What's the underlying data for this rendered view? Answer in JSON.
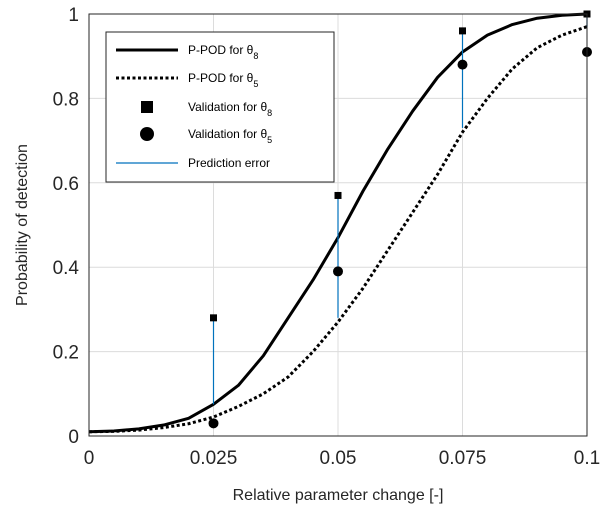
{
  "chart_data": {
    "type": "line",
    "xlabel": "Relative parameter change [-]",
    "ylabel": "Probability of detection",
    "xlim": [
      0,
      0.1
    ],
    "ylim": [
      0,
      1
    ],
    "x_ticks": [
      "0",
      "0.025",
      "0.05",
      "0.075",
      "0.1"
    ],
    "y_ticks": [
      "0",
      "0.2",
      "0.4",
      "0.6",
      "0.8",
      "1"
    ],
    "grid": true,
    "legend_position": "top-left",
    "colors": {
      "curve": "#000000",
      "error": "#0072BD",
      "grid": "#dcdcdc",
      "axis": "#262626"
    },
    "series": [
      {
        "name": "P-POD for θ8",
        "legend_main": "P-POD for θ",
        "legend_sub": "8",
        "style": "solid",
        "x": [
          0,
          0.005,
          0.01,
          0.015,
          0.02,
          0.025,
          0.03,
          0.035,
          0.04,
          0.045,
          0.05,
          0.055,
          0.06,
          0.065,
          0.07,
          0.075,
          0.08,
          0.085,
          0.09,
          0.095,
          0.1
        ],
        "y": [
          0.01,
          0.012,
          0.017,
          0.026,
          0.042,
          0.075,
          0.12,
          0.19,
          0.28,
          0.37,
          0.47,
          0.58,
          0.68,
          0.77,
          0.85,
          0.91,
          0.95,
          0.975,
          0.99,
          0.997,
          1.0
        ]
      },
      {
        "name": "P-POD for θ5",
        "legend_main": "P-POD for θ",
        "legend_sub": "5",
        "style": "dotted",
        "x": [
          0,
          0.005,
          0.01,
          0.015,
          0.02,
          0.025,
          0.03,
          0.035,
          0.04,
          0.045,
          0.05,
          0.055,
          0.06,
          0.065,
          0.07,
          0.075,
          0.08,
          0.085,
          0.09,
          0.095,
          0.1
        ],
        "y": [
          0.01,
          0.011,
          0.014,
          0.02,
          0.029,
          0.045,
          0.07,
          0.1,
          0.14,
          0.2,
          0.27,
          0.35,
          0.44,
          0.53,
          0.62,
          0.72,
          0.8,
          0.87,
          0.92,
          0.95,
          0.97
        ]
      },
      {
        "name": "Validation for θ8",
        "legend_main": "Validation for θ",
        "legend_sub": "8",
        "marker": "square",
        "x": [
          0.025,
          0.05,
          0.075,
          0.1
        ],
        "y": [
          0.28,
          0.57,
          0.96,
          1.0
        ]
      },
      {
        "name": "Validation for θ5",
        "legend_main": "Validation for θ",
        "legend_sub": "5",
        "marker": "circle",
        "x": [
          0.025,
          0.05,
          0.075,
          0.1
        ],
        "y": [
          0.03,
          0.39,
          0.88,
          0.91
        ]
      },
      {
        "name": "Prediction error",
        "legend_main": "Prediction error",
        "legend_sub": "",
        "style": "error-stem",
        "x": [
          0.025,
          0.05,
          0.075,
          0.1
        ],
        "y_from": [
          0.28,
          0.57,
          0.96,
          1.0
        ],
        "y_to": [
          0.075,
          0.28,
          0.73,
          0.97
        ]
      }
    ]
  }
}
